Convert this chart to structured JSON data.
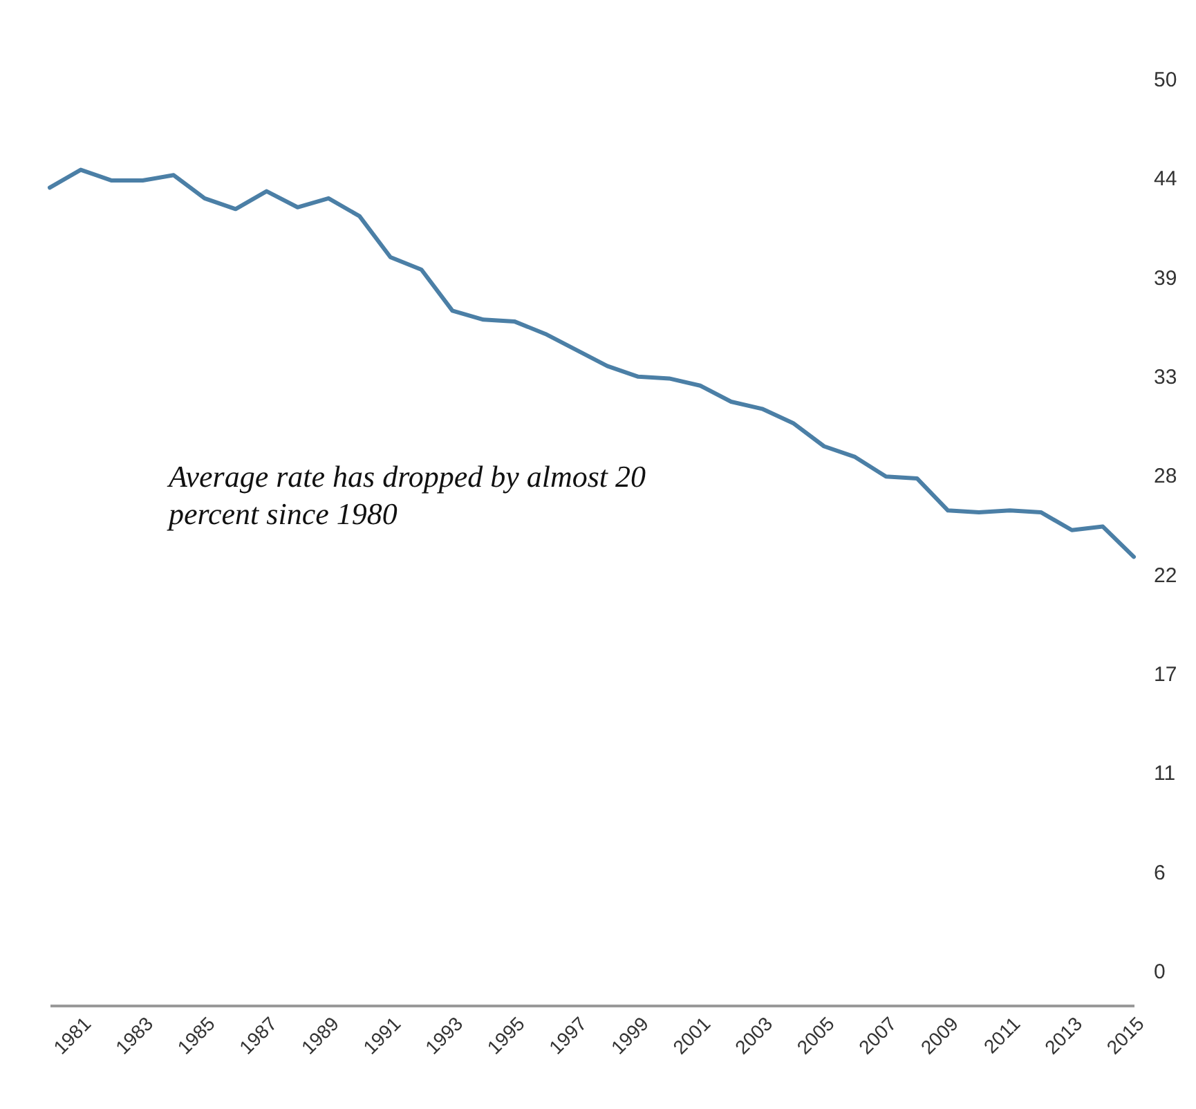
{
  "chart_data": {
    "type": "line",
    "x": [
      1980,
      1981,
      1982,
      1983,
      1984,
      1985,
      1986,
      1987,
      1988,
      1989,
      1990,
      1991,
      1992,
      1993,
      1994,
      1995,
      1996,
      1997,
      1998,
      1999,
      2000,
      2001,
      2002,
      2003,
      2004,
      2005,
      2006,
      2007,
      2008,
      2009,
      2010,
      2011,
      2012,
      2013,
      2014,
      2015
    ],
    "series": [
      {
        "color": "#4b7fa6",
        "values": [
          43.9,
          44.9,
          44.3,
          44.3,
          44.6,
          43.3,
          42.7,
          43.7,
          42.8,
          43.3,
          42.3,
          40.0,
          39.3,
          37.0,
          36.5,
          36.4,
          35.7,
          34.8,
          33.9,
          33.3,
          33.2,
          32.8,
          31.9,
          31.5,
          30.7,
          29.4,
          28.8,
          27.7,
          27.6,
          25.8,
          25.7,
          25.8,
          25.7,
          24.7,
          24.9,
          23.2
        ]
      }
    ],
    "xlim": [
      1980,
      2015
    ],
    "xticks": [
      1981,
      1983,
      1985,
      1987,
      1989,
      1991,
      1993,
      1995,
      1997,
      1999,
      2001,
      2003,
      2005,
      2007,
      2009,
      2011,
      2013,
      2015
    ],
    "ylim": [
      0,
      50
    ],
    "yticks": [
      0,
      {
        "value": 5.556,
        "label": "6"
      },
      {
        "value": 11.111,
        "label": "11"
      },
      {
        "value": 16.667,
        "label": "17"
      },
      {
        "value": 22.222,
        "label": "22"
      },
      {
        "value": 27.778,
        "label": "28"
      },
      {
        "value": 33.333,
        "label": "33"
      },
      {
        "value": 38.889,
        "label": "39"
      },
      {
        "value": 44.444,
        "label": "44"
      },
      50
    ],
    "annotations": [
      "Average rate has dropped by almost 20 percent since 1980"
    ],
    "grid": false,
    "legend": false,
    "marker": "none",
    "line_style": "solid"
  }
}
